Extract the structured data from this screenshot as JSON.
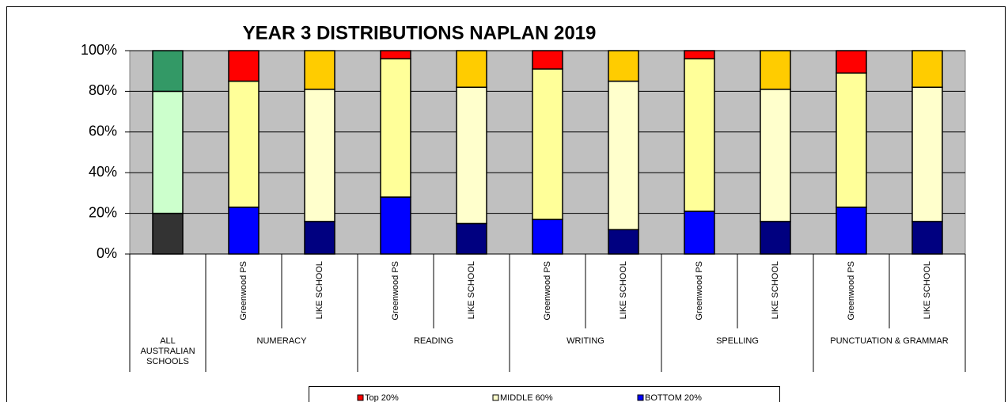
{
  "chart_data": {
    "type": "stacked_bar",
    "title": "YEAR 3 DISTRIBUTIONS NAPLAN 2019",
    "categories": [
      null,
      "Greenwood PS",
      "LIKE SCHOOL",
      "Greenwood PS",
      "LIKE SCHOOL",
      "Greenwood PS",
      "LIKE SCHOOL",
      "Greenwood PS",
      "LIKE SCHOOL",
      "Greenwood PS",
      "LIKE SCHOOL"
    ],
    "groups": [
      {
        "name": "ALL AUSTRALIAN SCHOOLS",
        "size": 1
      },
      {
        "name": "NUMERACY",
        "size": 2
      },
      {
        "name": "READING",
        "size": 2
      },
      {
        "name": "WRITING",
        "size": 2
      },
      {
        "name": "SPELLING",
        "size": 2
      },
      {
        "name": "PUNCTUATION & GRAMMAR",
        "size": 2
      }
    ],
    "series": [
      {
        "name": "Top 20%",
        "color": "#ff0000",
        "colors": [
          "#339966",
          "#ff0000",
          "#ffcc00",
          "#ff0000",
          "#ffcc00",
          "#ff0000",
          "#ffcc00",
          "#ff0000",
          "#ffcc00",
          "#ff0000",
          "#ffcc00"
        ],
        "values": [
          20,
          15,
          19,
          4,
          18,
          9,
          15,
          4,
          19,
          11,
          18
        ]
      },
      {
        "name": "MIDDLE 60%",
        "color": "#ffffcc",
        "colors": [
          "#ccffcc",
          "#ffff99",
          "#ffffcc",
          "#ffff99",
          "#ffffcc",
          "#ffff99",
          "#ffffcc",
          "#ffff99",
          "#ffffcc",
          "#ffff99",
          "#ffffcc"
        ],
        "values": [
          60,
          62,
          65,
          68,
          67,
          74,
          73,
          75,
          65,
          66,
          66
        ]
      },
      {
        "name": "BOTTOM 20%",
        "color": "#0000ff",
        "colors": [
          "#333333",
          "#0000ff",
          "#000080",
          "#0000ff",
          "#000080",
          "#0000ff",
          "#000080",
          "#0000ff",
          "#000080",
          "#0000ff",
          "#000080"
        ],
        "values": [
          20,
          23,
          16,
          28,
          15,
          17,
          12,
          21,
          16,
          23,
          16
        ]
      }
    ],
    "ylim": [
      0,
      100
    ],
    "yticks": [
      {
        "value": 0,
        "label": "0%"
      },
      {
        "value": 20,
        "label": "20%"
      },
      {
        "value": 40,
        "label": "40%"
      },
      {
        "value": 60,
        "label": "60%"
      },
      {
        "value": 80,
        "label": "80%"
      },
      {
        "value": 100,
        "label": "100%"
      }
    ],
    "grid": true,
    "legend": "bottom"
  }
}
